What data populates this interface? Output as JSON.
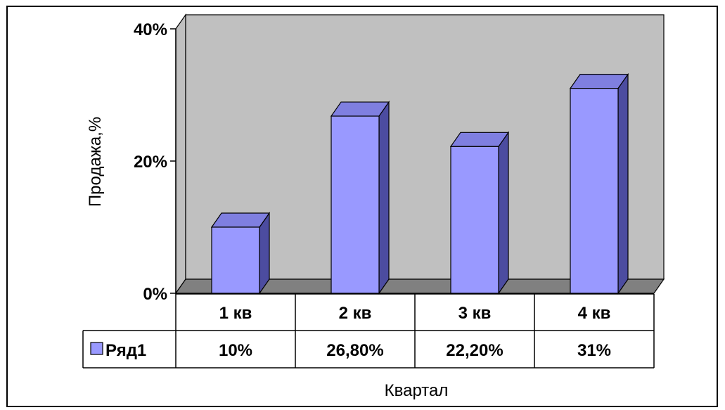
{
  "chart_data": {
    "type": "bar",
    "categories": [
      "1 кв",
      "2 кв",
      "3 кв",
      "4 кв"
    ],
    "series": [
      {
        "name": "Ряд1",
        "values": [
          10,
          26.8,
          22.2,
          31
        ],
        "labels": [
          "10%",
          "26,80%",
          "22,20%",
          "31%"
        ]
      }
    ],
    "xlabel": "Квартал",
    "ylabel": "Продажа,%",
    "ylim": [
      0,
      40
    ],
    "yticks": [
      "0%",
      "20%",
      "40%"
    ],
    "ytick_values": [
      0,
      20,
      40
    ],
    "grid": false,
    "legend": "data-table",
    "data_table": true,
    "three_d": true,
    "colors": {
      "bar_front": "#9999ff",
      "bar_top": "#7f7fe0",
      "bar_side": "#4c4ca0",
      "wall": "#c0c0c0",
      "floor": "#808080",
      "legend_key": "#9999ff"
    }
  }
}
